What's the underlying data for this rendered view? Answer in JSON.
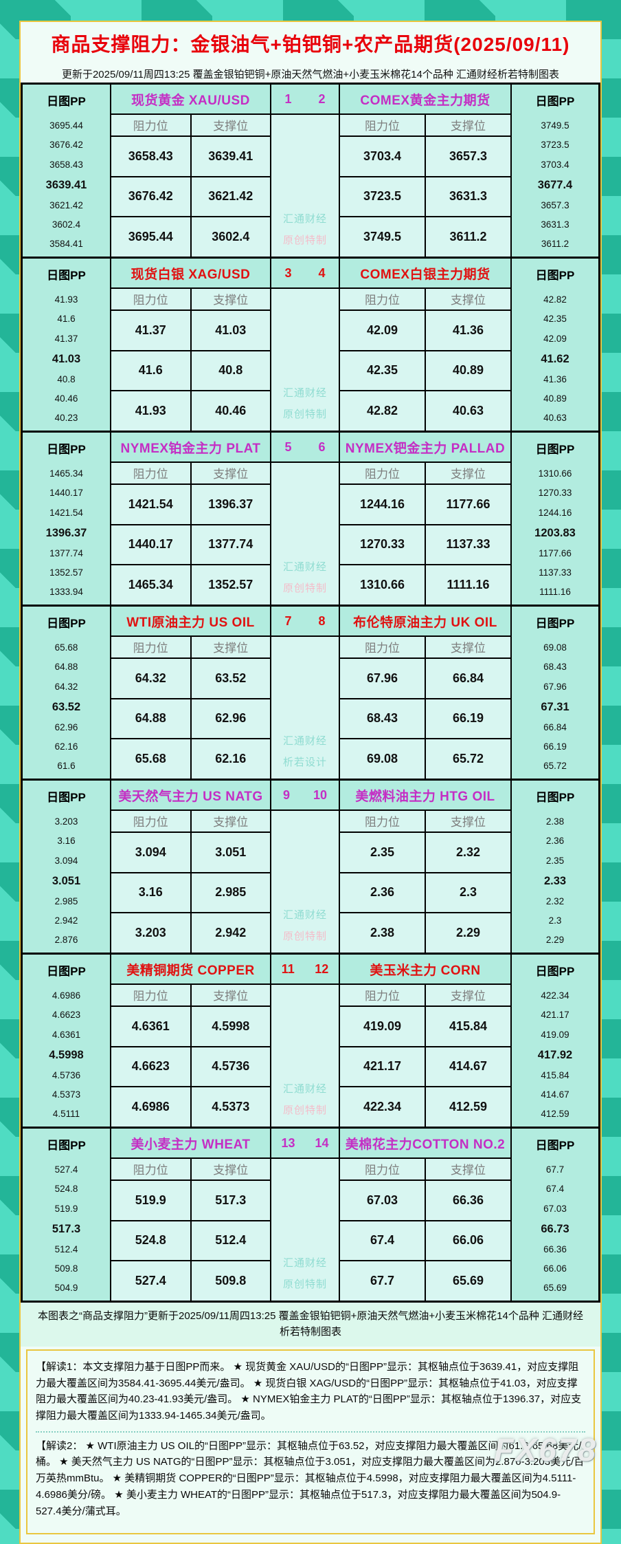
{
  "title": "商品支撑阻力：金银油气+铂钯铜+农产品期货(2025/09/11)",
  "subtitle": "更新于2025/09/11周四13:25 覆盖金银铂钯铜+原油天然气燃油+小麦玉米棉花14个品种 汇通财经析若特制图表",
  "labels": {
    "pp": "日图PP",
    "resistance": "阻力位",
    "support": "支撑位"
  },
  "colors": {
    "title_red": "#e8000a",
    "accent_magenta": "#c42ec4",
    "accent_red": "#e01111",
    "watermark_teal": "#8fdcd1",
    "watermark_pink": "#f4bcc9"
  },
  "chart_data": [
    {
      "type": "table",
      "pair_no": [
        "1",
        "2"
      ],
      "accent": "#c42ec4",
      "left": {
        "title": "现货黄金 XAU/USD",
        "pp": [
          "3695.44",
          "3676.42",
          "3658.43",
          "3639.41",
          "3621.42",
          "3602.4",
          "3584.41"
        ],
        "rows": [
          [
            "3658.43",
            "3639.41"
          ],
          [
            "3676.42",
            "3621.42"
          ],
          [
            "3695.44",
            "3602.4"
          ]
        ]
      },
      "right": {
        "title": "COMEX黄金主力期货",
        "pp": [
          "3749.5",
          "3723.5",
          "3703.4",
          "3677.4",
          "3657.3",
          "3631.3",
          "3611.2"
        ],
        "rows": [
          [
            "3703.4",
            "3657.3"
          ],
          [
            "3723.5",
            "3631.3"
          ],
          [
            "3749.5",
            "3611.2"
          ]
        ]
      },
      "watermark": [
        "汇通财经",
        "原创特制"
      ],
      "wm_colors": [
        "#8fdcd1",
        "#f4bcc9"
      ]
    },
    {
      "type": "table",
      "pair_no": [
        "3",
        "4"
      ],
      "accent": "#e01111",
      "left": {
        "title": "现货白银 XAG/USD",
        "pp": [
          "41.93",
          "41.6",
          "41.37",
          "41.03",
          "40.8",
          "40.46",
          "40.23"
        ],
        "rows": [
          [
            "41.37",
            "41.03"
          ],
          [
            "41.6",
            "40.8"
          ],
          [
            "41.93",
            "40.46"
          ]
        ]
      },
      "right": {
        "title": "COMEX白银主力期货",
        "pp": [
          "42.82",
          "42.35",
          "42.09",
          "41.62",
          "41.36",
          "40.89",
          "40.63"
        ],
        "rows": [
          [
            "42.09",
            "41.36"
          ],
          [
            "42.35",
            "40.89"
          ],
          [
            "42.82",
            "40.63"
          ]
        ]
      },
      "watermark": [
        "汇通财经",
        "原创特制"
      ],
      "wm_colors": [
        "#8fdcd1",
        "#8fdcd1"
      ]
    },
    {
      "type": "table",
      "pair_no": [
        "5",
        "6"
      ],
      "accent": "#c42ec4",
      "left": {
        "title": "NYMEX铂金主力 PLAT",
        "pp": [
          "1465.34",
          "1440.17",
          "1421.54",
          "1396.37",
          "1377.74",
          "1352.57",
          "1333.94"
        ],
        "rows": [
          [
            "1421.54",
            "1396.37"
          ],
          [
            "1440.17",
            "1377.74"
          ],
          [
            "1465.34",
            "1352.57"
          ]
        ]
      },
      "right": {
        "title": "NYMEX钯金主力 PALLAD",
        "pp": [
          "1310.66",
          "1270.33",
          "1244.16",
          "1203.83",
          "1177.66",
          "1137.33",
          "1111.16"
        ],
        "rows": [
          [
            "1244.16",
            "1177.66"
          ],
          [
            "1270.33",
            "1137.33"
          ],
          [
            "1310.66",
            "1111.16"
          ]
        ]
      },
      "watermark": [
        "汇通财经",
        "原创特制"
      ],
      "wm_colors": [
        "#8fdcd1",
        "#f4bcc9"
      ]
    },
    {
      "type": "table",
      "pair_no": [
        "7",
        "8"
      ],
      "accent": "#e01111",
      "left": {
        "title": "WTI原油主力 US OIL",
        "pp": [
          "65.68",
          "64.88",
          "64.32",
          "63.52",
          "62.96",
          "62.16",
          "61.6"
        ],
        "rows": [
          [
            "64.32",
            "63.52"
          ],
          [
            "64.88",
            "62.96"
          ],
          [
            "65.68",
            "62.16"
          ]
        ]
      },
      "right": {
        "title": "布伦特原油主力 UK OIL",
        "pp": [
          "69.08",
          "68.43",
          "67.96",
          "67.31",
          "66.84",
          "66.19",
          "65.72"
        ],
        "rows": [
          [
            "67.96",
            "66.84"
          ],
          [
            "68.43",
            "66.19"
          ],
          [
            "69.08",
            "65.72"
          ]
        ]
      },
      "watermark": [
        "汇通财经",
        "析若设计"
      ],
      "wm_colors": [
        "#8fdcd1",
        "#8fdcd1"
      ]
    },
    {
      "type": "table",
      "pair_no": [
        "9",
        "10"
      ],
      "accent": "#c42ec4",
      "left": {
        "title": "美天然气主力 US NATG",
        "pp": [
          "3.203",
          "3.16",
          "3.094",
          "3.051",
          "2.985",
          "2.942",
          "2.876"
        ],
        "rows": [
          [
            "3.094",
            "3.051"
          ],
          [
            "3.16",
            "2.985"
          ],
          [
            "3.203",
            "2.942"
          ]
        ]
      },
      "right": {
        "title": "美燃料油主力 HTG OIL",
        "pp": [
          "2.38",
          "2.36",
          "2.35",
          "2.33",
          "2.32",
          "2.3",
          "2.29"
        ],
        "rows": [
          [
            "2.35",
            "2.32"
          ],
          [
            "2.36",
            "2.3"
          ],
          [
            "2.38",
            "2.29"
          ]
        ]
      },
      "watermark": [
        "汇通财经",
        "原创特制"
      ],
      "wm_colors": [
        "#8fdcd1",
        "#f4bcc9"
      ]
    },
    {
      "type": "table",
      "pair_no": [
        "11",
        "12"
      ],
      "accent": "#e01111",
      "left": {
        "title": "美精铜期货 COPPER",
        "pp": [
          "4.6986",
          "4.6623",
          "4.6361",
          "4.5998",
          "4.5736",
          "4.5373",
          "4.5111"
        ],
        "rows": [
          [
            "4.6361",
            "4.5998"
          ],
          [
            "4.6623",
            "4.5736"
          ],
          [
            "4.6986",
            "4.5373"
          ]
        ]
      },
      "right": {
        "title": "美玉米主力 CORN",
        "pp": [
          "422.34",
          "421.17",
          "419.09",
          "417.92",
          "415.84",
          "414.67",
          "412.59"
        ],
        "rows": [
          [
            "419.09",
            "415.84"
          ],
          [
            "421.17",
            "414.67"
          ],
          [
            "422.34",
            "412.59"
          ]
        ]
      },
      "watermark": [
        "汇通财经",
        "原创特制"
      ],
      "wm_colors": [
        "#8fdcd1",
        "#f4bcc9"
      ]
    },
    {
      "type": "table",
      "pair_no": [
        "13",
        "14"
      ],
      "accent": "#c42ec4",
      "left": {
        "title": "美小麦主力 WHEAT",
        "pp": [
          "527.4",
          "524.8",
          "519.9",
          "517.3",
          "512.4",
          "509.8",
          "504.9"
        ],
        "rows": [
          [
            "519.9",
            "517.3"
          ],
          [
            "524.8",
            "512.4"
          ],
          [
            "527.4",
            "509.8"
          ]
        ]
      },
      "right": {
        "title": "美棉花主力COTTON NO.2",
        "pp": [
          "67.7",
          "67.4",
          "67.03",
          "66.73",
          "66.36",
          "66.06",
          "65.69"
        ],
        "rows": [
          [
            "67.03",
            "66.36"
          ],
          [
            "67.4",
            "66.06"
          ],
          [
            "67.7",
            "65.69"
          ]
        ]
      },
      "watermark": [
        "汇通财经",
        "原创特制"
      ],
      "wm_colors": [
        "#8fdcd1",
        "#8fdcd1"
      ]
    }
  ],
  "footer_band": "本图表之“商品支撑阻力”更新于2025/09/11周四13:25 覆盖金银铂钯铜+原油天然气燃油+小麦玉米棉花14个品种 汇通财经析若特制图表",
  "jiedu1": "【解读1：本文支撑阻力基于日图PP而来。 ★ 现货黄金 XAU/USD的“日图PP”显示：其枢轴点位于3639.41，对应支撑阻力最大覆盖区间为3584.41-3695.44美元/盎司。 ★ 现货白银 XAG/USD的“日图PP”显示：其枢轴点位于41.03，对应支撑阻力最大覆盖区间为40.23-41.93美元/盎司。 ★ NYMEX铂金主力 PLAT的“日图PP”显示：其枢轴点位于1396.37，对应支撑阻力最大覆盖区间为1333.94-1465.34美元/盎司。",
  "jiedu2": "【解读2： ★ WTI原油主力 US OIL的“日图PP”显示：其枢轴点位于63.52，对应支撑阻力最大覆盖区间为61.6-65.68美元/桶。 ★ 美天然气主力 US NATG的“日图PP”显示：其枢轴点位于3.051，对应支撑阻力最大覆盖区间为2.876-3.203美元/百万英热mmBtu。 ★ 美精铜期货 COPPER的“日图PP”显示：其枢轴点位于4.5998，对应支撑阻力最大覆盖区间为4.5111-4.6986美分/磅。 ★ 美小麦主力 WHEAT的“日图PP”显示：其枢轴点位于517.3，对应支撑阻力最大覆盖区间为504.9-527.4美分/蒲式耳。",
  "brand": "FX678"
}
